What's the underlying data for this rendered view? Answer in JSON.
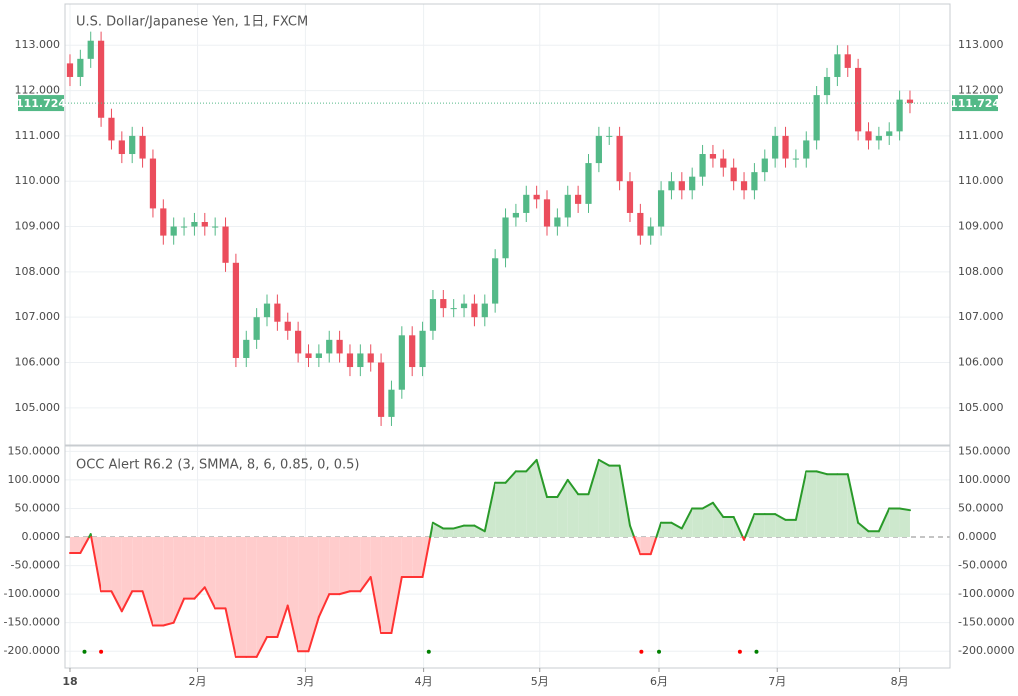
{
  "chart_data": [
    {
      "type": "candlestick",
      "title": "U.S. Dollar/Japanese Yen, 1日, FXCM",
      "up_color": "#53b987",
      "down_color": "#eb4d5c",
      "xlim": [
        -0.48,
        84.86
      ],
      "ylim": [
        104.18,
        113.91
      ],
      "yticks": [
        {
          "value": 105,
          "label": "105.000"
        },
        {
          "value": 106,
          "label": "106.000"
        },
        {
          "value": 107,
          "label": "107.000"
        },
        {
          "value": 108,
          "label": "108.000"
        },
        {
          "value": 109,
          "label": "109.000"
        },
        {
          "value": 110,
          "label": "110.000"
        },
        {
          "value": 111,
          "label": "111.000"
        },
        {
          "value": 112,
          "label": "112.000"
        },
        {
          "value": 113,
          "label": "113.000"
        }
      ],
      "grid": true,
      "last_price": 111.724,
      "last_price_color": "#53b987",
      "open": [
        112.6,
        112.3,
        112.7,
        113.1,
        111.4,
        110.9,
        110.6,
        111.0,
        110.5,
        109.4,
        108.8,
        109.0,
        109.0,
        109.1,
        109.0,
        109.0,
        108.2,
        106.1,
        106.5,
        107.0,
        107.3,
        106.9,
        106.7,
        106.2,
        106.1,
        106.2,
        106.5,
        106.2,
        105.9,
        106.2,
        106.0,
        104.8,
        105.4,
        106.6,
        105.9,
        106.7,
        107.4,
        107.2,
        107.2,
        107.3,
        107.0,
        107.3,
        108.3,
        109.2,
        109.3,
        109.7,
        109.6,
        109.0,
        109.2,
        109.7,
        109.5,
        110.4,
        111.0,
        111.0,
        110.0,
        109.3,
        108.8,
        109.0,
        109.8,
        110.0,
        109.8,
        110.1,
        110.6,
        110.5,
        110.3,
        110.0,
        109.8,
        110.2,
        110.5,
        111.0,
        110.5,
        110.5,
        110.9,
        111.9,
        112.3,
        112.8,
        112.5,
        111.1,
        110.9,
        111.0,
        111.1,
        111.8
      ],
      "high": [
        112.8,
        112.9,
        113.3,
        113.3,
        111.6,
        111.1,
        111.2,
        111.2,
        110.7,
        109.6,
        109.2,
        109.2,
        109.3,
        109.3,
        109.2,
        109.2,
        108.4,
        106.7,
        107.2,
        107.5,
        107.5,
        107.1,
        106.9,
        106.4,
        106.4,
        106.7,
        106.7,
        106.4,
        106.4,
        106.4,
        106.2,
        105.6,
        106.8,
        106.8,
        106.9,
        107.6,
        107.6,
        107.4,
        107.5,
        107.5,
        107.5,
        108.5,
        109.4,
        109.5,
        109.9,
        109.9,
        109.8,
        109.4,
        109.9,
        109.9,
        110.6,
        111.2,
        111.2,
        111.2,
        110.2,
        109.5,
        109.2,
        110.0,
        110.2,
        110.2,
        110.3,
        110.8,
        110.8,
        110.7,
        110.5,
        110.2,
        110.4,
        110.7,
        111.2,
        111.2,
        110.7,
        111.1,
        112.1,
        112.5,
        113.0,
        113.0,
        112.7,
        111.3,
        111.2,
        111.3,
        112.0,
        112.0
      ],
      "low": [
        112.1,
        112.1,
        112.5,
        111.2,
        110.7,
        110.4,
        110.4,
        110.3,
        109.2,
        108.6,
        108.6,
        108.8,
        108.8,
        108.8,
        108.8,
        108.0,
        105.9,
        105.9,
        106.3,
        106.8,
        106.7,
        106.5,
        106.0,
        105.9,
        105.9,
        106.0,
        106.0,
        105.7,
        105.7,
        105.8,
        104.6,
        104.6,
        105.2,
        105.7,
        105.7,
        106.5,
        107.0,
        107.0,
        107.0,
        106.8,
        106.8,
        107.1,
        108.1,
        109.0,
        109.1,
        109.4,
        108.8,
        108.8,
        109.0,
        109.3,
        109.3,
        110.2,
        110.8,
        109.8,
        109.1,
        108.6,
        108.6,
        108.8,
        109.6,
        109.6,
        109.6,
        109.9,
        110.3,
        110.1,
        109.8,
        109.6,
        109.6,
        110.0,
        110.3,
        110.3,
        110.3,
        110.3,
        110.7,
        111.7,
        112.1,
        112.3,
        110.9,
        110.7,
        110.7,
        110.8,
        110.9,
        111.5
      ],
      "close": [
        112.3,
        112.7,
        113.1,
        111.4,
        110.9,
        110.6,
        111.0,
        110.5,
        109.4,
        108.8,
        109.0,
        109.0,
        109.1,
        109.0,
        109.0,
        108.2,
        106.1,
        106.5,
        107.0,
        107.3,
        106.9,
        106.7,
        106.2,
        106.1,
        106.2,
        106.5,
        106.2,
        105.9,
        106.2,
        106.0,
        104.8,
        105.4,
        106.6,
        105.9,
        106.7,
        107.4,
        107.2,
        107.2,
        107.3,
        107.0,
        107.3,
        108.3,
        109.2,
        109.3,
        109.7,
        109.6,
        109.0,
        109.2,
        109.7,
        109.5,
        110.4,
        111.0,
        111.0,
        110.0,
        109.3,
        108.8,
        109.0,
        109.8,
        110.0,
        109.8,
        110.1,
        110.6,
        110.5,
        110.3,
        110.0,
        109.8,
        110.2,
        110.5,
        111.0,
        110.5,
        110.5,
        110.9,
        111.9,
        112.3,
        112.8,
        112.5,
        111.1,
        110.9,
        111.0,
        111.1,
        111.8,
        111.724
      ]
    },
    {
      "type": "oscillator",
      "title": "OCC Alert R6.2 (3, SMMA, 8, 6, 0.85, 0, 0.5)",
      "pos_color": "#2a9a2a",
      "neg_color": "#ff3333",
      "pos_fill": "#cde8cd",
      "neg_fill": "#ffcccc",
      "xlim": [
        -0.48,
        84.86
      ],
      "ylim": [
        -229.4,
        159.4
      ],
      "xticks": [
        {
          "value": 0,
          "label": "18"
        },
        {
          "value": 12.3,
          "label": "2月"
        },
        {
          "value": 22.7,
          "label": "3月"
        },
        {
          "value": 34.1,
          "label": "4月"
        },
        {
          "value": 45.3,
          "label": "5月"
        },
        {
          "value": 56.8,
          "label": "6月"
        },
        {
          "value": 68.2,
          "label": "7月"
        },
        {
          "value": 80,
          "label": "8月"
        }
      ],
      "yticks": [
        {
          "value": -200,
          "label": "-200.0000"
        },
        {
          "value": -150,
          "label": "-150.0000"
        },
        {
          "value": -100,
          "label": "-100.0000"
        },
        {
          "value": -50,
          "label": "-50.0000"
        },
        {
          "value": 0,
          "label": "0.0000"
        },
        {
          "value": 50,
          "label": "50.0000"
        },
        {
          "value": 100,
          "label": "100.0000"
        },
        {
          "value": 150,
          "label": "150.0000"
        }
      ],
      "grid": true,
      "values": [
        -28,
        -28,
        5,
        -95,
        -95,
        -130,
        -95,
        -95,
        -155,
        -155,
        -150,
        -108,
        -108,
        -88,
        -125,
        -125,
        -210,
        -210,
        -210,
        -175,
        -175,
        -120,
        -200,
        -200,
        -140,
        -100,
        -100,
        -95,
        -95,
        -70,
        -168,
        -168,
        -70,
        -70,
        -70,
        25,
        15,
        15,
        20,
        20,
        10,
        95,
        95,
        115,
        115,
        135,
        70,
        70,
        100,
        75,
        75,
        135,
        125,
        125,
        20,
        -30,
        -30,
        25,
        25,
        15,
        50,
        50,
        60,
        35,
        35,
        -5,
        40,
        40,
        40,
        30,
        30,
        115,
        115,
        110,
        110,
        110,
        25,
        10,
        10,
        50,
        50,
        47
      ],
      "signal_level": -201,
      "buy_color": "#008000",
      "sell_color": "#ff0000",
      "buy_signals": [
        1.4,
        34.6,
        56.8,
        66.2
      ],
      "sell_signals": [
        3.0,
        55.1,
        64.6
      ]
    }
  ]
}
